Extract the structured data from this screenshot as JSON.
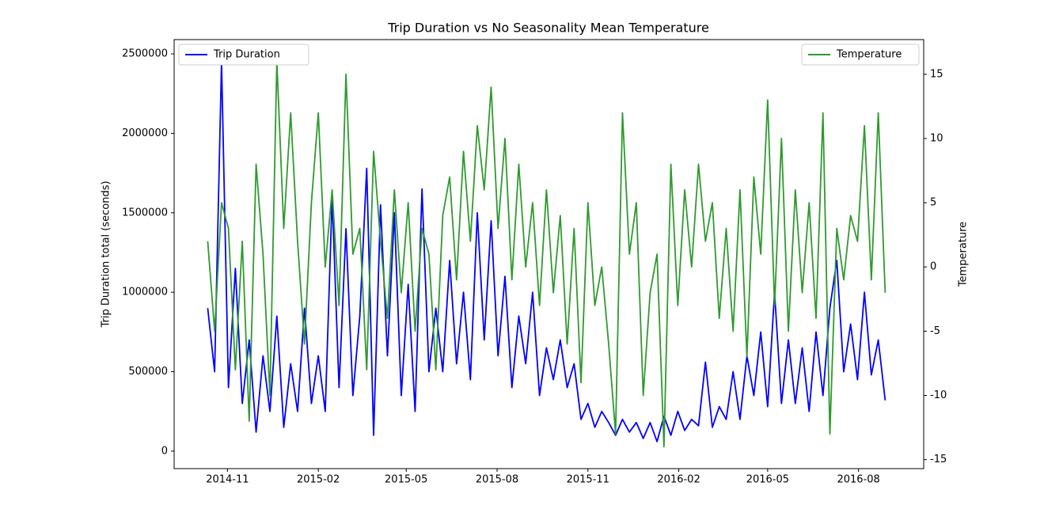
{
  "chart_data": {
    "type": "line",
    "title": "Trip Duration vs No Seasonality Mean Temperature",
    "ylabel": "Trip Duration total (seconds)",
    "y2label": "Temperature",
    "x": [
      "2014-10-12",
      "2014-10-19",
      "2014-10-26",
      "2014-11-02",
      "2014-11-09",
      "2014-11-16",
      "2014-11-23",
      "2014-11-30",
      "2014-12-07",
      "2014-12-14",
      "2014-12-21",
      "2014-12-28",
      "2015-01-04",
      "2015-01-11",
      "2015-01-18",
      "2015-01-25",
      "2015-02-01",
      "2015-02-08",
      "2015-02-15",
      "2015-02-22",
      "2015-03-01",
      "2015-03-08",
      "2015-03-15",
      "2015-03-22",
      "2015-03-29",
      "2015-04-05",
      "2015-04-12",
      "2015-04-19",
      "2015-04-26",
      "2015-05-03",
      "2015-05-10",
      "2015-05-17",
      "2015-05-24",
      "2015-05-31",
      "2015-06-07",
      "2015-06-14",
      "2015-06-21",
      "2015-06-28",
      "2015-07-05",
      "2015-07-12",
      "2015-07-19",
      "2015-07-26",
      "2015-08-02",
      "2015-08-09",
      "2015-08-16",
      "2015-08-23",
      "2015-08-30",
      "2015-09-06",
      "2015-09-13",
      "2015-09-20",
      "2015-09-27",
      "2015-10-04",
      "2015-10-11",
      "2015-10-18",
      "2015-10-25",
      "2015-11-01",
      "2015-11-08",
      "2015-11-15",
      "2015-11-22",
      "2015-11-29",
      "2015-12-06",
      "2015-12-13",
      "2015-12-20",
      "2015-12-27",
      "2016-01-03",
      "2016-01-10",
      "2016-01-17",
      "2016-01-24",
      "2016-01-31",
      "2016-02-07",
      "2016-02-14",
      "2016-02-21",
      "2016-02-28",
      "2016-03-06",
      "2016-03-13",
      "2016-03-20",
      "2016-03-27",
      "2016-04-03",
      "2016-04-10",
      "2016-04-17",
      "2016-04-24",
      "2016-05-01",
      "2016-05-08",
      "2016-05-15",
      "2016-05-22",
      "2016-05-29",
      "2016-06-05",
      "2016-06-12",
      "2016-06-19",
      "2016-06-26",
      "2016-07-03",
      "2016-07-10",
      "2016-07-17",
      "2016-07-24",
      "2016-07-31",
      "2016-08-07",
      "2016-08-14",
      "2016-08-21",
      "2016-08-28"
    ],
    "series": [
      {
        "name": "Trip Duration",
        "color": "#0000ff",
        "legend_loc": "upper left",
        "values": [
          900000,
          500000,
          2450000,
          400000,
          1150000,
          300000,
          700000,
          120000,
          600000,
          250000,
          850000,
          150000,
          550000,
          250000,
          900000,
          300000,
          600000,
          250000,
          1600000,
          400000,
          1400000,
          350000,
          850000,
          1780000,
          100000,
          1550000,
          600000,
          1500000,
          350000,
          1050000,
          250000,
          1650000,
          500000,
          900000,
          500000,
          1200000,
          550000,
          1000000,
          450000,
          1500000,
          700000,
          1450000,
          600000,
          1100000,
          400000,
          850000,
          550000,
          1000000,
          350000,
          650000,
          450000,
          700000,
          400000,
          550000,
          200000,
          300000,
          150000,
          250000,
          180000,
          100000,
          200000,
          120000,
          180000,
          80000,
          180000,
          60000,
          220000,
          100000,
          250000,
          130000,
          200000,
          160000,
          560000,
          150000,
          280000,
          200000,
          500000,
          200000,
          600000,
          350000,
          750000,
          280000,
          1000000,
          300000,
          700000,
          300000,
          650000,
          250000,
          750000,
          350000,
          900000,
          1200000,
          500000,
          800000,
          450000,
          1000000,
          480000,
          700000,
          320000
        ]
      },
      {
        "name": "Temperature",
        "color": "#2e9a2e",
        "axis": "y2",
        "legend_loc": "upper right",
        "values": [
          2,
          -5,
          5,
          3,
          -8,
          2,
          -12,
          8,
          1,
          -10,
          16,
          3,
          12,
          2,
          -6,
          5,
          12,
          0,
          6,
          -3,
          15,
          1,
          3,
          -8,
          9,
          2,
          -4,
          6,
          -2,
          5,
          -5,
          3,
          1,
          -8,
          4,
          7,
          -1,
          9,
          2,
          11,
          6,
          14,
          3,
          10,
          -1,
          8,
          0,
          5,
          -3,
          6,
          -2,
          4,
          -6,
          3,
          -9,
          5,
          -3,
          0,
          -6,
          -13,
          12,
          1,
          5,
          -10,
          -2,
          1,
          -14,
          8,
          -3,
          6,
          0,
          8,
          2,
          5,
          -4,
          3,
          -5,
          6,
          -7,
          7,
          1,
          13,
          -3,
          10,
          -5,
          6,
          -2,
          5,
          -4,
          12,
          -13,
          3,
          -1,
          4,
          2,
          11,
          -1,
          12,
          -2
        ]
      }
    ],
    "xlim": [
      "2014-09-08",
      "2016-10-06"
    ],
    "xticks": [
      {
        "value": "2014-11-01",
        "label": "2014-11"
      },
      {
        "value": "2015-02-01",
        "label": "2015-02"
      },
      {
        "value": "2015-05-01",
        "label": "2015-05"
      },
      {
        "value": "2015-08-01",
        "label": "2015-08"
      },
      {
        "value": "2015-11-01",
        "label": "2015-11"
      },
      {
        "value": "2016-02-01",
        "label": "2016-02"
      },
      {
        "value": "2016-05-01",
        "label": "2016-05"
      },
      {
        "value": "2016-08-01",
        "label": "2016-08"
      }
    ],
    "ylim": [
      -110000,
      2590000
    ],
    "yticks": [
      0,
      500000,
      1000000,
      1500000,
      2000000,
      2500000
    ],
    "y2lim": [
      -15.7,
      17.7
    ],
    "y2ticks": [
      -15,
      -10,
      -5,
      0,
      5,
      10,
      15
    ]
  }
}
